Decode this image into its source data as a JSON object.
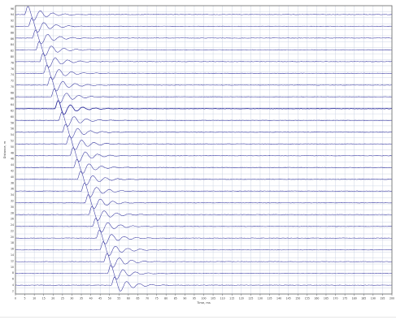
{
  "chart_data": {
    "type": "line",
    "title": "",
    "xlabel": "Time, ms",
    "ylabel": "Distance, m",
    "xlim": [
      0,
      200
    ],
    "x_ticks": [
      "0",
      "5",
      "10",
      "15",
      "20",
      "25",
      "30",
      "35",
      "40",
      "45",
      "50",
      "55",
      "60",
      "65",
      "70",
      "75",
      "80",
      "85",
      "90",
      "95",
      "100",
      "105",
      "110",
      "115",
      "120",
      "125",
      "130",
      "135",
      "140",
      "145",
      "150",
      "155",
      "160",
      "165",
      "170",
      "175",
      "180",
      "185",
      "190",
      "195",
      "200"
    ],
    "y_ticks": [
      "96",
      "94",
      "92",
      "90",
      "88",
      "86",
      "84",
      "82",
      "80",
      "78",
      "76",
      "74",
      "72",
      "70",
      "68",
      "66",
      "64",
      "62",
      "60",
      "58",
      "56",
      "54",
      "52",
      "50",
      "48",
      "46",
      "44",
      "42",
      "40",
      "38",
      "36",
      "34",
      "32",
      "30",
      "28",
      "26",
      "24",
      "22",
      "20",
      "18",
      "16",
      "14",
      "12",
      "10",
      "8",
      "6",
      "4",
      "2"
    ],
    "grid": true,
    "trace_count": 24,
    "first_arrival_ms": [
      5,
      7,
      9,
      11,
      13,
      15,
      17,
      19,
      21,
      23,
      25,
      27,
      29,
      31,
      33,
      35,
      37,
      39,
      41,
      43,
      45,
      47,
      49,
      51
    ],
    "colors": {
      "trace": "#33339f",
      "grid": "#c9d1e2",
      "axis": "#666666",
      "background": "#ffffff"
    }
  }
}
